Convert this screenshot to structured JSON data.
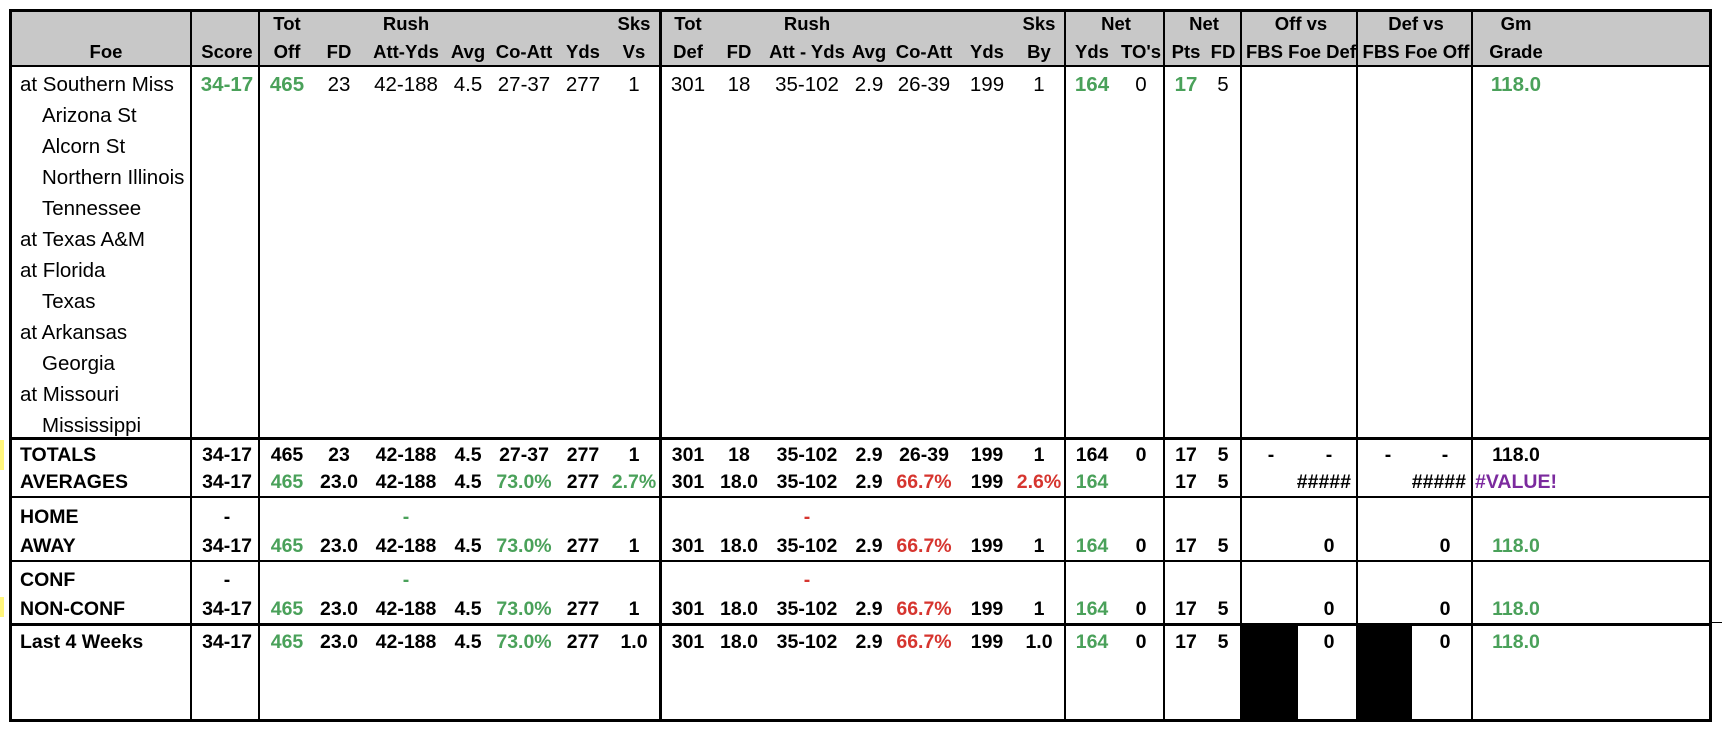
{
  "header": {
    "row1": {
      "tot_off": "Tot",
      "rush_off": "Rush",
      "sks_vs": "Sks",
      "tot_def": "Tot",
      "rush_def": "Rush",
      "sks_by": "Sks",
      "net_yds": "Net",
      "net_pts": "Net",
      "off_vs": "Off vs",
      "def_vs": "Def vs",
      "gm": "Gm"
    },
    "row2": {
      "foe": "Foe",
      "score": "Score",
      "off": "Off",
      "fd": "FD",
      "att_yds": "Att-Yds",
      "avg": "Avg",
      "co_att": "Co-Att",
      "yds": "Yds",
      "vs": "Vs",
      "def": "Def",
      "dfd": "FD",
      "datt_yds": "Att - Yds",
      "davg": "Avg",
      "dco_att": "Co-Att",
      "dyds": "Yds",
      "by": "By",
      "nyds": "Yds",
      "tos": "TO's",
      "pts": "Pts",
      "nfd": "FD",
      "fbs_def": "FBS Foe Def",
      "fbs_off": "FBS Foe Off",
      "grade": "Grade"
    }
  },
  "games": [
    {
      "foe": "at Southern Miss",
      "away": true,
      "score": "34-17",
      "tot_off": "465",
      "fd": "23",
      "rush": "42-188",
      "avg": "4.5",
      "co_att": "27-37",
      "yds": "277",
      "sks_vs": "1",
      "tot_def": "301",
      "dfd": "18",
      "drush": "35-102",
      "davg": "2.9",
      "dco_att": "26-39",
      "dyds": "199",
      "sks_by": "1",
      "net_yds": "164",
      "tos": "0",
      "net_pts": "17",
      "net_fd": "5",
      "grade": "118.0"
    },
    {
      "foe": "Arizona St",
      "away": false
    },
    {
      "foe": "Alcorn St",
      "away": false
    },
    {
      "foe": "Northern Illinois",
      "away": false
    },
    {
      "foe": "Tennessee",
      "away": false
    },
    {
      "foe": "at Texas A&M",
      "away": true
    },
    {
      "foe": "at Florida",
      "away": true
    },
    {
      "foe": "Texas",
      "away": false
    },
    {
      "foe": "at Arkansas",
      "away": true
    },
    {
      "foe": "Georgia",
      "away": false
    },
    {
      "foe": "at Missouri",
      "away": true
    },
    {
      "foe": "Mississippi",
      "away": false
    }
  ],
  "totals": {
    "label": "TOTALS",
    "score": "34-17",
    "tot_off": "465",
    "fd": "23",
    "rush": "42-188",
    "avg": "4.5",
    "co_att": "27-37",
    "yds": "277",
    "sks_vs": "1",
    "tot_def": "301",
    "dfd": "18",
    "drush": "35-102",
    "davg": "2.9",
    "dco_att": "26-39",
    "dyds": "199",
    "sks_by": "1",
    "net_yds": "164",
    "tos": "0",
    "net_pts": "17",
    "net_fd": "5",
    "off_a": "-",
    "off_b": "-",
    "def_a": "-",
    "def_b": "-",
    "grade": "118.0"
  },
  "averages": {
    "label": "AVERAGES",
    "score": "34-17",
    "tot_off": "465",
    "fd": "23.0",
    "rush": "42-188",
    "avg": "4.5",
    "co_att": "73.0%",
    "yds": "277",
    "sks_vs": "2.7%",
    "tot_def": "301",
    "dfd": "18.0",
    "drush": "35-102",
    "davg": "2.9",
    "dco_att": "66.7%",
    "dyds": "199",
    "sks_by": "2.6%",
    "net_yds": "164",
    "net_pts": "17",
    "net_fd": "5",
    "off_vs": "#####",
    "def_vs": "#####",
    "grade": "#VALUE!"
  },
  "home": {
    "label": "HOME",
    "score": "-",
    "rush": "-",
    "drush": "-"
  },
  "away_row": {
    "label": "AWAY",
    "score": "34-17",
    "tot_off": "465",
    "fd": "23.0",
    "rush": "42-188",
    "avg": "4.5",
    "co_att": "73.0%",
    "yds": "277",
    "sks_vs": "1",
    "tot_def": "301",
    "dfd": "18.0",
    "drush": "35-102",
    "davg": "2.9",
    "dco_att": "66.7%",
    "dyds": "199",
    "sks_by": "1",
    "net_yds": "164",
    "tos": "0",
    "net_pts": "17",
    "net_fd": "5",
    "off_vs": "0",
    "def_vs": "0",
    "grade": "118.0"
  },
  "conf": {
    "label": "CONF",
    "score": "-",
    "rush": "-",
    "drush": "-"
  },
  "nonconf": {
    "label": "NON-CONF",
    "score": "34-17",
    "tot_off": "465",
    "fd": "23.0",
    "rush": "42-188",
    "avg": "4.5",
    "co_att": "73.0%",
    "yds": "277",
    "sks_vs": "1",
    "tot_def": "301",
    "dfd": "18.0",
    "drush": "35-102",
    "davg": "2.9",
    "dco_att": "66.7%",
    "dyds": "199",
    "sks_by": "1",
    "net_yds": "164",
    "tos": "0",
    "net_pts": "17",
    "net_fd": "5",
    "off_vs": "0",
    "def_vs": "0",
    "grade": "118.0"
  },
  "last4": {
    "label": "Last 4 Weeks",
    "score": "34-17",
    "tot_off": "465",
    "fd": "23.0",
    "rush": "42-188",
    "avg": "4.5",
    "co_att": "73.0%",
    "yds": "277",
    "sks_vs": "1.0",
    "tot_def": "301",
    "dfd": "18.0",
    "drush": "35-102",
    "davg": "2.9",
    "dco_att": "66.7%",
    "dyds": "199",
    "sks_by": "1.0",
    "net_yds": "164",
    "tos": "0",
    "net_pts": "17",
    "net_fd": "5",
    "off_vs": "0",
    "def_vs": "0",
    "grade": "118.0"
  },
  "colors": {
    "good": "#4aa15a",
    "bad": "#d6352f",
    "error": "#7b2a9e",
    "header_bg": "#c8c8c8",
    "highlight": "#fff57a"
  }
}
